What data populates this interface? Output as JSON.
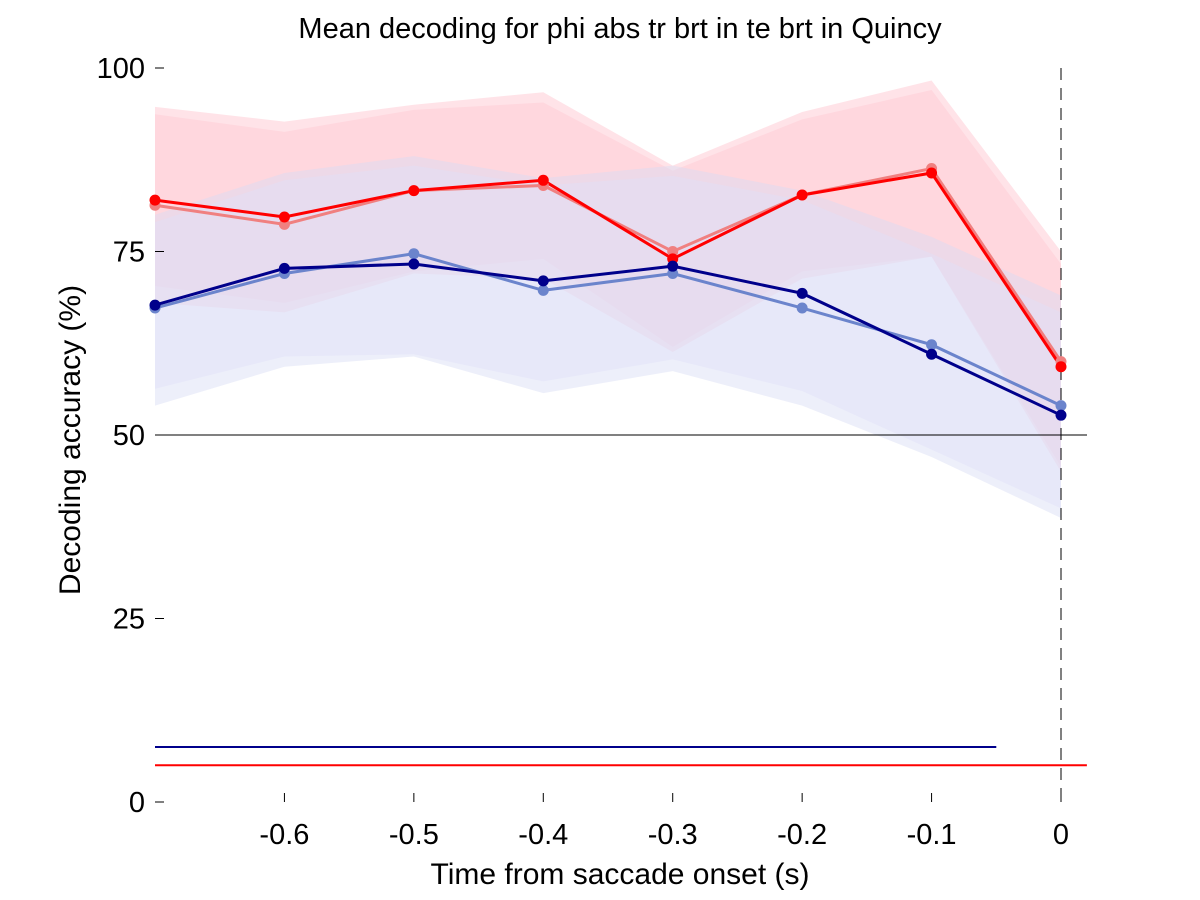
{
  "chart_data": {
    "type": "line",
    "title": "Mean decoding for phi abs tr brt in te brt in  Quincy",
    "xlabel": "Time from saccade onset (s)",
    "ylabel": "Decoding accuracy (%)",
    "xlim": [
      -0.7,
      0.02
    ],
    "ylim": [
      0,
      100
    ],
    "x_ticks": [
      -0.6,
      -0.5,
      -0.4,
      -0.3,
      -0.2,
      -0.1,
      0
    ],
    "x_tick_labels": [
      "-0.6",
      "-0.5",
      "-0.4",
      "-0.3",
      "-0.2",
      "-0.1",
      "0"
    ],
    "y_ticks": [
      0,
      25,
      50,
      75,
      100
    ],
    "y_tick_labels": [
      "0",
      "25",
      "50",
      "75",
      "100"
    ],
    "chance_level": 50,
    "event_line_x": 0,
    "x": [
      -0.7,
      -0.6,
      -0.5,
      -0.4,
      -0.3,
      -0.2,
      -0.1,
      0
    ],
    "series": [
      {
        "color": "#f08080",
        "band_color": "#ffc0cb",
        "values": [
          81.3,
          78.7,
          83.3,
          84.0,
          75.0,
          82.7,
          86.3,
          60.0
        ],
        "band_upper": [
          94.7,
          92.7,
          95.0,
          96.7,
          86.7,
          94.0,
          98.3,
          75.0
        ],
        "band_lower": [
          68.0,
          66.7,
          72.0,
          71.3,
          61.3,
          71.3,
          74.3,
          45.0
        ]
      },
      {
        "color": "#ff0000",
        "band_color": "#ffc8d2",
        "values": [
          82.0,
          79.7,
          83.3,
          84.7,
          74.0,
          82.7,
          85.7,
          59.3
        ],
        "band_upper": [
          93.7,
          91.3,
          94.3,
          95.3,
          86.0,
          93.0,
          97.0,
          73.3
        ],
        "band_lower": [
          70.3,
          68.0,
          72.3,
          74.0,
          62.0,
          72.3,
          74.3,
          45.7
        ]
      },
      {
        "color": "#6b84cc",
        "band_color": "#d8dcf5",
        "values": [
          67.3,
          72.0,
          74.7,
          69.7,
          72.0,
          67.3,
          62.3,
          54.0
        ],
        "band_upper": [
          80.0,
          85.7,
          88.0,
          85.0,
          86.7,
          83.3,
          77.0,
          69.0
        ],
        "band_lower": [
          54.0,
          59.3,
          60.7,
          55.7,
          58.7,
          54.0,
          47.0,
          38.7
        ]
      },
      {
        "color": "#00008b",
        "band_color": "#e0e0f8",
        "values": [
          67.7,
          72.7,
          73.3,
          71.0,
          73.0,
          69.3,
          61.0,
          52.7
        ],
        "band_upper": [
          79.0,
          84.7,
          86.7,
          84.0,
          85.3,
          82.0,
          74.7,
          66.7
        ],
        "band_lower": [
          56.3,
          60.7,
          61.0,
          57.3,
          60.3,
          56.0,
          48.0,
          40.0
        ]
      }
    ],
    "significance_bars": [
      {
        "color": "#00008b",
        "x_start": -0.7,
        "x_end": -0.05,
        "y": 7.5
      },
      {
        "color": "#ff0000",
        "x_start": -0.7,
        "x_end": 0.02,
        "y": 5
      }
    ]
  }
}
